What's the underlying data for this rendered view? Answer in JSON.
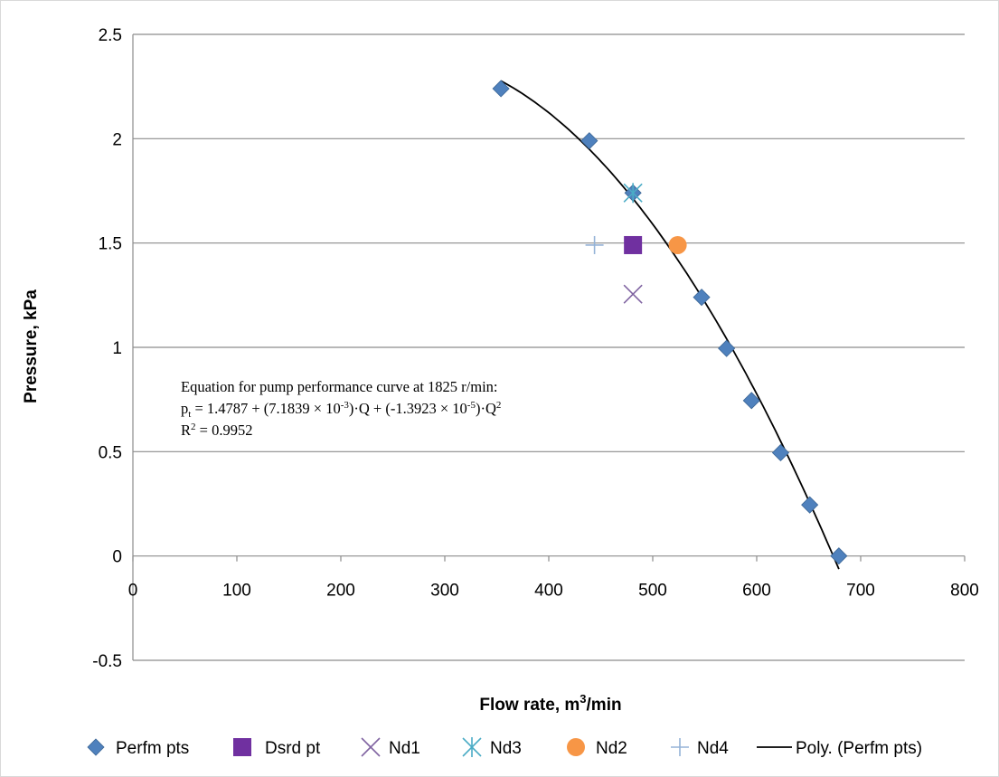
{
  "chart_data": {
    "type": "scatter",
    "title": "",
    "xlabel": "Flow rate, m",
    "xlabel_sup": "3",
    "xlabel_tail": "/min",
    "ylabel": "Pressure, kPa",
    "xlim": [
      0,
      800
    ],
    "ylim": [
      -0.5,
      2.5
    ],
    "x_ticks": [
      "0",
      "100",
      "200",
      "300",
      "400",
      "500",
      "600",
      "700",
      "800"
    ],
    "y_ticks": [
      "-0.5",
      "0",
      "0.5",
      "1",
      "1.5",
      "2",
      "2.5"
    ],
    "grid": "horizontal",
    "legend_position": "bottom",
    "series": [
      {
        "name": "Perfm pts",
        "marker": "diamond",
        "color": "#4F81BD",
        "points": [
          [
            354,
            2.24
          ],
          [
            439,
            1.99
          ],
          [
            481,
            1.74
          ],
          [
            547,
            1.24
          ],
          [
            571,
            0.995
          ],
          [
            595,
            0.745
          ],
          [
            623,
            0.495
          ],
          [
            651,
            0.245
          ],
          [
            679,
            0.0
          ]
        ]
      },
      {
        "name": "Dsrd pt",
        "marker": "square",
        "color": "#7030A0",
        "points": [
          [
            481,
            1.49
          ]
        ]
      },
      {
        "name": "Nd1",
        "marker": "x",
        "color": "#8064A2",
        "points": [
          [
            481,
            1.255
          ]
        ]
      },
      {
        "name": "Nd3",
        "marker": "star",
        "color": "#4BACC6",
        "points": [
          [
            481,
            1.74
          ]
        ]
      },
      {
        "name": "Nd2",
        "marker": "circle",
        "color": "#F79646",
        "points": [
          [
            524,
            1.49
          ]
        ]
      },
      {
        "name": "Nd4",
        "marker": "plus",
        "color": "#95B3D7",
        "points": [
          [
            444,
            1.49
          ]
        ]
      }
    ],
    "trendline": {
      "name": "Poly. (Perfm pts)",
      "color": "#000000",
      "x_range": [
        354,
        679
      ],
      "coefficients": [
        1.4787,
        0.0071839,
        -1.3923e-05
      ]
    },
    "annotation": {
      "line1": "Equation for pump performance curve at 1825 r/min:",
      "line2_a": "p",
      "line2_sub": "t",
      "line2_b": " = 1.4787 + (7.1839 × 10",
      "line2_sup1": "-3",
      "line2_c": ")·Q + (-1.3923 × 10",
      "line2_sup2": "-5",
      "line2_d": ")·Q",
      "line2_sup3": "2",
      "line3_a": "R",
      "line3_sup": "2",
      "line3_b": " = 0.9952"
    }
  }
}
